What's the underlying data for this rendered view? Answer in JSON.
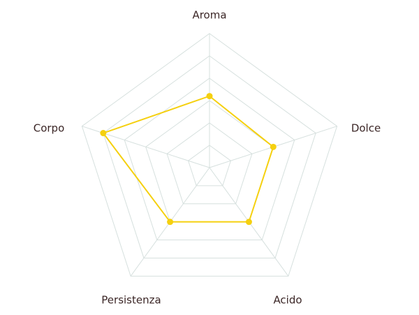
{
  "chart_data": {
    "type": "radar",
    "categories": [
      "Aroma",
      "Dolce",
      "Acido",
      "Persistenza",
      "Corpo"
    ],
    "series": [
      {
        "color": "#f5d00f",
        "values": [
          3.2,
          3,
          3,
          3,
          5
        ]
      }
    ],
    "rlim": [
      0,
      6
    ],
    "rticks": [
      1,
      2,
      3,
      4,
      5,
      6
    ],
    "grid": true
  }
}
